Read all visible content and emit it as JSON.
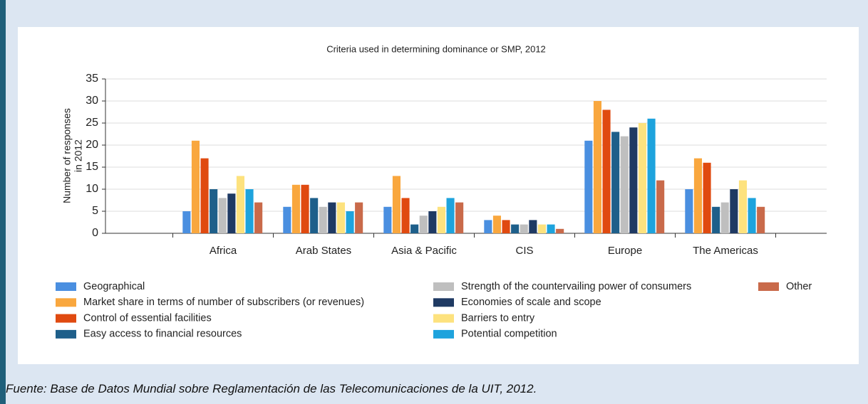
{
  "chart_data": {
    "type": "bar",
    "title": "Criteria used in determining dominance or SMP, 2012",
    "y_label": [
      "Number of responses",
      "in 2012"
    ],
    "categories": [
      "Africa",
      "Arab States",
      "Asia & Pacific",
      "CIS",
      "Europe",
      "The Americas"
    ],
    "series": [
      {
        "name": "Geographical",
        "color": "#4a8fe0",
        "values": [
          5,
          6,
          6,
          3,
          21,
          10
        ]
      },
      {
        "name": "Market share in terms of number of subscribers (or revenues)",
        "color": "#f9a73e",
        "values": [
          21,
          11,
          13,
          4,
          30,
          17
        ]
      },
      {
        "name": "Control of essential facilities",
        "color": "#e04a10",
        "values": [
          17,
          11,
          8,
          3,
          28,
          16
        ]
      },
      {
        "name": "Easy access to financial resources",
        "color": "#1e5f8a",
        "values": [
          10,
          8,
          2,
          2,
          23,
          6
        ]
      },
      {
        "name": "Strength of the countervailing power of consumers",
        "color": "#bfbfbf",
        "values": [
          8,
          6,
          4,
          2,
          22,
          7
        ]
      },
      {
        "name": "Economies of scale and scope",
        "color": "#1f3a63",
        "values": [
          9,
          7,
          5,
          3,
          24,
          10
        ]
      },
      {
        "name": "Barriers to entry",
        "color": "#fde27e",
        "values": [
          13,
          7,
          6,
          2,
          25,
          12
        ]
      },
      {
        "name": "Potential competition",
        "color": "#1ea3dd",
        "values": [
          10,
          5,
          8,
          2,
          26,
          8
        ]
      },
      {
        "name": "Other",
        "color": "#c96a4a",
        "values": [
          7,
          7,
          7,
          1,
          12,
          6
        ]
      }
    ],
    "ylim": [
      0,
      35
    ],
    "yticks": [
      0,
      5,
      10,
      15,
      20,
      25,
      30,
      35
    ],
    "grid": true,
    "source": "Fuente: Base de Datos Mundial sobre Reglamentación de las Telecomunicaciones de la UIT, 2012."
  }
}
